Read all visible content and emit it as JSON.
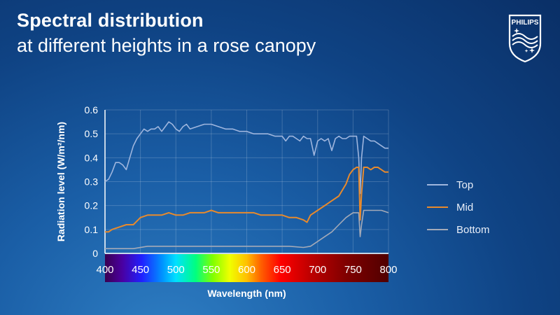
{
  "header": {
    "title": "Spectral distribution",
    "subtitle": "at different heights in a rose canopy"
  },
  "logo": {
    "text": "PHILIPS"
  },
  "colors": {
    "top": "#9fb6de",
    "mid": "#e88a2c",
    "bottom": "#a4aab8"
  },
  "chart_data": {
    "type": "line",
    "xlabel": "Wavelength (nm)",
    "ylabel": "Radiation level (W/m²/nm)",
    "xlim": [
      400,
      800
    ],
    "ylim": [
      0,
      0.6
    ],
    "x_ticks": [
      "400",
      "450",
      "500",
      "550",
      "600",
      "650",
      "700",
      "750",
      "800"
    ],
    "y_ticks": [
      "0",
      "0.1",
      "0.2",
      "0.3",
      "0.4",
      "0.5",
      "0.6"
    ],
    "grid": true,
    "legend": "right",
    "series": [
      {
        "name": "Top",
        "x": [
          400,
          405,
          410,
          415,
          420,
          425,
          430,
          435,
          440,
          445,
          450,
          455,
          460,
          465,
          470,
          475,
          480,
          485,
          490,
          495,
          500,
          505,
          510,
          515,
          520,
          530,
          540,
          550,
          560,
          570,
          580,
          590,
          600,
          610,
          620,
          630,
          640,
          650,
          655,
          660,
          665,
          670,
          675,
          680,
          685,
          690,
          695,
          700,
          705,
          710,
          715,
          720,
          725,
          730,
          735,
          740,
          745,
          750,
          755,
          758,
          760,
          762,
          765,
          770,
          775,
          780,
          785,
          790,
          795,
          800
        ],
        "values": [
          0.3,
          0.31,
          0.34,
          0.38,
          0.38,
          0.37,
          0.35,
          0.4,
          0.45,
          0.48,
          0.5,
          0.52,
          0.51,
          0.52,
          0.52,
          0.53,
          0.51,
          0.53,
          0.55,
          0.54,
          0.52,
          0.51,
          0.53,
          0.54,
          0.52,
          0.53,
          0.54,
          0.54,
          0.53,
          0.52,
          0.52,
          0.51,
          0.51,
          0.5,
          0.5,
          0.5,
          0.49,
          0.49,
          0.47,
          0.49,
          0.49,
          0.48,
          0.47,
          0.49,
          0.48,
          0.48,
          0.41,
          0.47,
          0.48,
          0.47,
          0.48,
          0.43,
          0.48,
          0.49,
          0.48,
          0.48,
          0.49,
          0.49,
          0.49,
          0.4,
          0.25,
          0.4,
          0.49,
          0.48,
          0.47,
          0.47,
          0.46,
          0.45,
          0.44,
          0.44
        ]
      },
      {
        "name": "Mid",
        "x": [
          400,
          405,
          410,
          420,
          430,
          440,
          450,
          460,
          470,
          480,
          490,
          500,
          510,
          520,
          530,
          540,
          550,
          560,
          570,
          580,
          590,
          600,
          610,
          620,
          630,
          640,
          650,
          660,
          670,
          680,
          685,
          690,
          700,
          710,
          720,
          730,
          740,
          745,
          750,
          755,
          758,
          760,
          762,
          765,
          770,
          775,
          780,
          785,
          790,
          795,
          800
        ],
        "values": [
          0.09,
          0.09,
          0.1,
          0.11,
          0.12,
          0.12,
          0.15,
          0.16,
          0.16,
          0.16,
          0.17,
          0.16,
          0.16,
          0.17,
          0.17,
          0.17,
          0.18,
          0.17,
          0.17,
          0.17,
          0.17,
          0.17,
          0.17,
          0.16,
          0.16,
          0.16,
          0.16,
          0.15,
          0.15,
          0.14,
          0.13,
          0.16,
          0.18,
          0.2,
          0.22,
          0.24,
          0.29,
          0.33,
          0.35,
          0.36,
          0.36,
          0.14,
          0.25,
          0.36,
          0.36,
          0.35,
          0.36,
          0.36,
          0.35,
          0.34,
          0.34
        ]
      },
      {
        "name": "Bottom",
        "x": [
          400,
          420,
          440,
          460,
          480,
          500,
          520,
          540,
          560,
          580,
          600,
          620,
          640,
          660,
          680,
          690,
          700,
          710,
          720,
          730,
          740,
          745,
          750,
          755,
          758,
          760,
          762,
          765,
          770,
          780,
          790,
          800
        ],
        "values": [
          0.02,
          0.02,
          0.02,
          0.03,
          0.03,
          0.03,
          0.03,
          0.03,
          0.03,
          0.03,
          0.03,
          0.03,
          0.03,
          0.03,
          0.025,
          0.03,
          0.05,
          0.07,
          0.09,
          0.12,
          0.15,
          0.16,
          0.17,
          0.17,
          0.17,
          0.07,
          0.12,
          0.18,
          0.18,
          0.18,
          0.18,
          0.17
        ]
      }
    ]
  }
}
